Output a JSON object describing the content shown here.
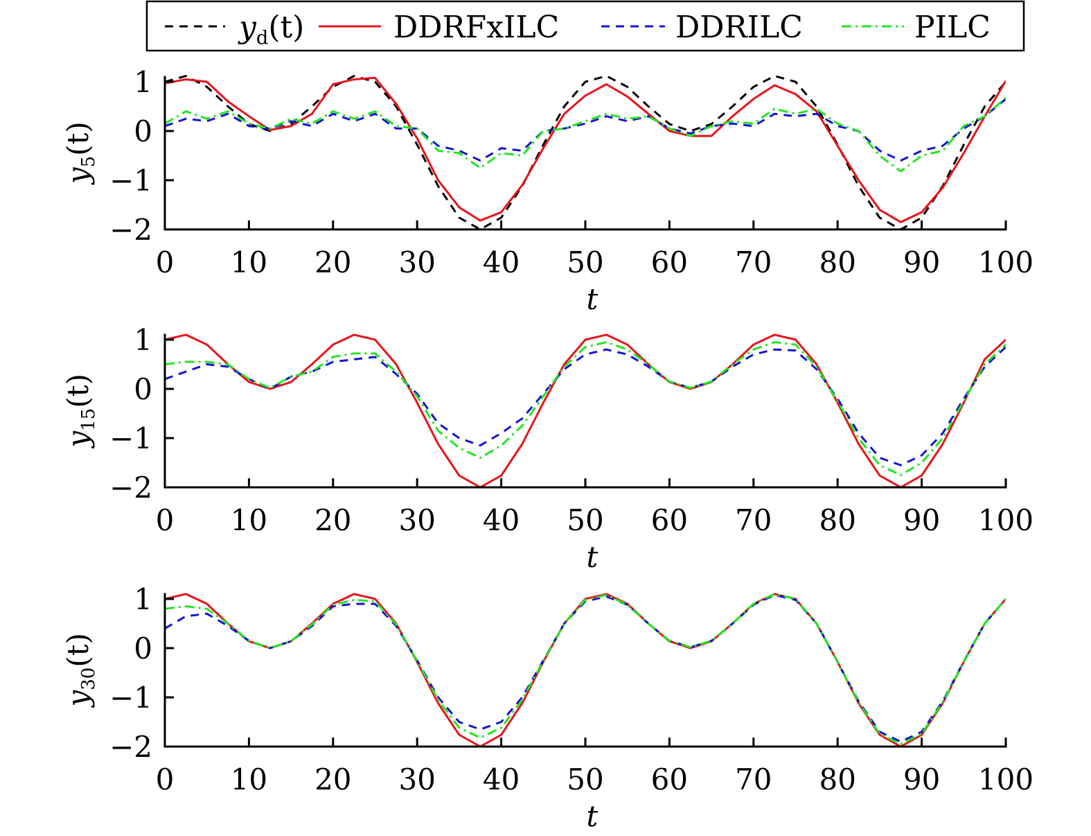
{
  "chart_data": {
    "type": "line",
    "x": [
      0,
      2.5,
      5,
      7.5,
      10,
      12.5,
      15,
      17.5,
      20,
      22.5,
      25,
      27.5,
      30,
      32.5,
      35,
      37.5,
      40,
      42.5,
      45,
      47.5,
      50,
      52.5,
      55,
      57.5,
      60,
      62.5,
      65,
      67.5,
      70,
      72.5,
      75,
      77.5,
      80,
      82.5,
      85,
      87.5,
      90,
      92.5,
      95,
      97.5,
      100
    ],
    "legend": {
      "placement": "top",
      "entries": [
        "y_d(t)",
        "DDRFxILC",
        "DDRILC",
        "PILC"
      ]
    },
    "colors": {
      "y_d(t)": "#000000",
      "DDRFxILC": "#e8141a",
      "DDRILC": "#1414d2",
      "PILC": "#22e622"
    },
    "line_styles": {
      "y_d(t)": "dashed",
      "DDRFxILC": "solid",
      "DDRILC": "dashed",
      "PILC": "dash-dot"
    },
    "panels": [
      {
        "xlabel": "t",
        "ylabel": "y_5(t)",
        "xlim": [
          0,
          100
        ],
        "ylim": [
          -2,
          1.12
        ],
        "xticks": [
          0,
          10,
          20,
          30,
          40,
          50,
          60,
          70,
          80,
          90,
          100
        ],
        "yticks": [
          -2,
          -1,
          0,
          1
        ],
        "grid": false,
        "series": [
          {
            "name": "y_d(t)",
            "values": [
              1,
              1.118,
              0.897,
              0.5,
              0.142,
              0,
              0.142,
              0.5,
              0.897,
              1.118,
              1,
              0.5,
              -0.279,
              -1.118,
              -1.76,
              -2,
              -1.76,
              -1.118,
              -0.279,
              0.5,
              1,
              1.118,
              0.897,
              0.5,
              0.142,
              0,
              0.142,
              0.5,
              0.897,
              1.118,
              1,
              0.5,
              -0.279,
              -1.118,
              -1.76,
              -2,
              -1.76,
              -1.118,
              -0.279,
              0.5,
              1
            ]
          },
          {
            "name": "DDRFxILC",
            "values": [
              0.97,
              1.05,
              1.0,
              0.6,
              0.3,
              0.02,
              0.1,
              0.35,
              0.95,
              1.05,
              1.08,
              0.55,
              -0.15,
              -1.0,
              -1.55,
              -1.82,
              -1.65,
              -1.1,
              -0.35,
              0.35,
              0.72,
              0.95,
              0.7,
              0.35,
              0.0,
              -0.1,
              -0.1,
              0.3,
              0.65,
              0.93,
              0.75,
              0.4,
              -0.3,
              -1.0,
              -1.6,
              -1.85,
              -1.65,
              -1.15,
              -0.45,
              0.3,
              1.02
            ]
          },
          {
            "name": "DDRILC",
            "values": [
              0.1,
              0.25,
              0.2,
              0.35,
              0.1,
              0.05,
              0.2,
              0.1,
              0.35,
              0.2,
              0.35,
              0.05,
              0.05,
              -0.3,
              -0.4,
              -0.6,
              -0.35,
              -0.4,
              0.0,
              0.05,
              0.15,
              0.3,
              0.2,
              0.3,
              0.05,
              -0.05,
              0.1,
              0.15,
              0.1,
              0.35,
              0.3,
              0.35,
              0.1,
              0.0,
              -0.4,
              -0.6,
              -0.4,
              -0.3,
              0.05,
              0.3,
              0.65
            ]
          },
          {
            "name": "PILC",
            "values": [
              0.15,
              0.4,
              0.25,
              0.4,
              0.15,
              0.05,
              0.25,
              0.15,
              0.4,
              0.25,
              0.4,
              0.1,
              0.05,
              -0.4,
              -0.45,
              -0.75,
              -0.45,
              -0.5,
              0.0,
              0.05,
              0.2,
              0.35,
              0.25,
              0.3,
              0.05,
              -0.1,
              0.1,
              0.2,
              0.15,
              0.45,
              0.35,
              0.45,
              0.15,
              0.0,
              -0.5,
              -0.82,
              -0.5,
              -0.4,
              0.1,
              0.3,
              0.68
            ]
          }
        ]
      },
      {
        "xlabel": "t",
        "ylabel": "y_15(t)",
        "xlim": [
          0,
          100
        ],
        "ylim": [
          -2,
          1.12
        ],
        "xticks": [
          0,
          10,
          20,
          30,
          40,
          50,
          60,
          70,
          80,
          90,
          100
        ],
        "yticks": [
          -2,
          -1,
          0,
          1
        ],
        "grid": false,
        "series": [
          {
            "name": "DDRFxILC",
            "values": [
              1,
              1.1,
              0.9,
              0.5,
              0.14,
              0,
              0.14,
              0.5,
              0.9,
              1.1,
              1,
              0.5,
              -0.28,
              -1.12,
              -1.76,
              -2,
              -1.76,
              -1.12,
              -0.28,
              0.5,
              1,
              1.1,
              0.9,
              0.5,
              0.14,
              0,
              0.14,
              0.5,
              0.9,
              1.1,
              1,
              0.5,
              -0.28,
              -1.12,
              -1.76,
              -2,
              -1.76,
              -1.12,
              -0.28,
              0.6,
              1
            ]
          },
          {
            "name": "DDRILC",
            "values": [
              0.2,
              0.35,
              0.5,
              0.45,
              0.2,
              0.0,
              0.25,
              0.35,
              0.55,
              0.6,
              0.65,
              0.3,
              -0.1,
              -0.7,
              -1.0,
              -1.15,
              -0.9,
              -0.6,
              -0.1,
              0.4,
              0.7,
              0.8,
              0.7,
              0.45,
              0.15,
              0.02,
              0.15,
              0.45,
              0.7,
              0.8,
              0.78,
              0.4,
              -0.2,
              -0.9,
              -1.4,
              -1.55,
              -1.35,
              -0.9,
              -0.2,
              0.45,
              0.85
            ]
          },
          {
            "name": "PILC",
            "values": [
              0.5,
              0.55,
              0.55,
              0.5,
              0.2,
              0.02,
              0.25,
              0.35,
              0.65,
              0.72,
              0.72,
              0.35,
              -0.15,
              -0.85,
              -1.2,
              -1.4,
              -1.15,
              -0.75,
              -0.15,
              0.45,
              0.85,
              0.95,
              0.8,
              0.5,
              0.15,
              0.02,
              0.15,
              0.5,
              0.8,
              0.95,
              0.9,
              0.45,
              -0.25,
              -1.0,
              -1.55,
              -1.75,
              -1.5,
              -1.0,
              -0.25,
              0.5,
              0.9
            ]
          }
        ]
      },
      {
        "xlabel": "t",
        "ylabel": "y_30(t)",
        "xlim": [
          0,
          100
        ],
        "ylim": [
          -2,
          1.12
        ],
        "xticks": [
          0,
          10,
          20,
          30,
          40,
          50,
          60,
          70,
          80,
          90,
          100
        ],
        "yticks": [
          -2,
          -1,
          0,
          1
        ],
        "grid": false,
        "series": [
          {
            "name": "DDRFxILC",
            "values": [
              1,
              1.1,
              0.9,
              0.5,
              0.14,
              0,
              0.14,
              0.5,
              0.9,
              1.1,
              1,
              0.5,
              -0.28,
              -1.12,
              -1.76,
              -2,
              -1.76,
              -1.12,
              -0.28,
              0.5,
              1,
              1.1,
              0.9,
              0.5,
              0.14,
              0,
              0.14,
              0.5,
              0.9,
              1.1,
              1,
              0.5,
              -0.28,
              -1.12,
              -1.76,
              -2,
              -1.76,
              -1.12,
              -0.28,
              0.5,
              1
            ]
          },
          {
            "name": "DDRILC",
            "values": [
              0.4,
              0.65,
              0.7,
              0.45,
              0.15,
              0.0,
              0.14,
              0.45,
              0.85,
              0.9,
              0.9,
              0.45,
              -0.25,
              -1.0,
              -1.5,
              -1.65,
              -1.5,
              -1.0,
              -0.25,
              0.5,
              0.95,
              1.05,
              0.88,
              0.5,
              0.15,
              0.02,
              0.15,
              0.5,
              0.88,
              1.08,
              0.98,
              0.5,
              -0.28,
              -1.08,
              -1.7,
              -1.9,
              -1.7,
              -1.08,
              -0.27,
              0.5,
              1
            ]
          },
          {
            "name": "PILC",
            "values": [
              0.8,
              0.85,
              0.8,
              0.5,
              0.15,
              0.0,
              0.14,
              0.48,
              0.88,
              0.98,
              0.95,
              0.48,
              -0.26,
              -1.05,
              -1.62,
              -1.82,
              -1.62,
              -1.05,
              -0.26,
              0.5,
              0.98,
              1.08,
              0.88,
              0.5,
              0.15,
              0.02,
              0.15,
              0.5,
              0.9,
              1.1,
              1,
              0.5,
              -0.28,
              -1.1,
              -1.74,
              -1.95,
              -1.74,
              -1.1,
              -0.28,
              0.5,
              1
            ]
          }
        ]
      }
    ]
  }
}
